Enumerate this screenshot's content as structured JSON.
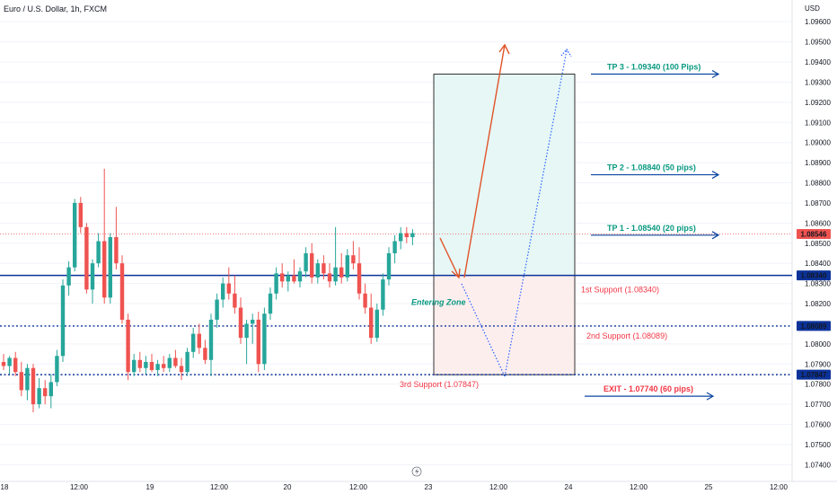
{
  "header": {
    "title": "Euro / U.S. Dollar, 1h, FXCM"
  },
  "currency_label": "USD",
  "colors": {
    "up": "#26a69a",
    "down": "#ef5350",
    "line_blue": "#0c3299",
    "tp_text": "#089981",
    "support_text": "#f23645",
    "arrow_blue": "#0d47a1",
    "orange": "#e1542a",
    "dotted_blue": "#2962ff",
    "tp_box": "#e6f7f5",
    "sl_box": "#fdeeee"
  },
  "chart_data": {
    "type": "candlestick",
    "symbol": "EURUSD",
    "timeframe": "1h",
    "ylim": [
      1.0738,
      1.0968
    ],
    "y_ticks": [
      "1.07400",
      "1.07500",
      "1.07600",
      "1.07700",
      "1.07800",
      "1.07900",
      "1.08000",
      "1.08200",
      "1.08300",
      "1.08400",
      "1.08500",
      "1.08600",
      "1.08700",
      "1.08800",
      "1.08900",
      "1.09000",
      "1.09100",
      "1.09200",
      "1.09300",
      "1.09400",
      "1.09500",
      "1.09600"
    ],
    "x_labels": [
      "18",
      "12:00",
      "19",
      "12:00",
      "20",
      "12:00",
      "23",
      "12:00",
      "24",
      "12:00",
      "25",
      "12:00"
    ],
    "candles": [
      [
        1.0791,
        1.0795,
        1.0787,
        1.0789
      ],
      [
        1.0789,
        1.0794,
        1.0785,
        1.0793
      ],
      [
        1.0793,
        1.0796,
        1.0784,
        1.0786
      ],
      [
        1.0786,
        1.0791,
        1.0774,
        1.0777
      ],
      [
        1.0777,
        1.079,
        1.0772,
        1.0788
      ],
      [
        1.0788,
        1.079,
        1.0766,
        1.077
      ],
      [
        1.077,
        1.0783,
        1.0768,
        1.0778
      ],
      [
        1.0778,
        1.0782,
        1.077,
        1.0774
      ],
      [
        1.0774,
        1.0785,
        1.0768,
        1.0781
      ],
      [
        1.0781,
        1.0797,
        1.0779,
        1.0794
      ],
      [
        1.0794,
        1.0832,
        1.0791,
        1.0829
      ],
      [
        1.0829,
        1.0841,
        1.0824,
        1.0838
      ],
      [
        1.0838,
        1.0872,
        1.0836,
        1.087
      ],
      [
        1.087,
        1.0873,
        1.0855,
        1.0858
      ],
      [
        1.0858,
        1.086,
        1.0825,
        1.0827
      ],
      [
        1.0827,
        1.0842,
        1.082,
        1.084
      ],
      [
        1.084,
        1.0855,
        1.0838,
        1.0851
      ],
      [
        1.0851,
        1.0887,
        1.082,
        1.0823
      ],
      [
        1.0823,
        1.0855,
        1.082,
        1.0853
      ],
      [
        1.0853,
        1.0868,
        1.0837,
        1.084
      ],
      [
        1.084,
        1.0844,
        1.081,
        1.0812
      ],
      [
        1.0812,
        1.0815,
        1.0782,
        1.0786
      ],
      [
        1.0786,
        1.0795,
        1.0784,
        1.0792
      ],
      [
        1.0792,
        1.0796,
        1.0786,
        1.0788
      ],
      [
        1.0788,
        1.0794,
        1.0785,
        1.0791
      ],
      [
        1.0791,
        1.0795,
        1.0786,
        1.0787
      ],
      [
        1.0787,
        1.0792,
        1.0784,
        1.079
      ],
      [
        1.079,
        1.0794,
        1.0786,
        1.0788
      ],
      [
        1.0788,
        1.0795,
        1.0786,
        1.0793
      ],
      [
        1.0793,
        1.0797,
        1.0788,
        1.0789
      ],
      [
        1.0789,
        1.0793,
        1.0782,
        1.0786
      ],
      [
        1.0786,
        1.0798,
        1.0784,
        1.0796
      ],
      [
        1.0796,
        1.0808,
        1.0793,
        1.0805
      ],
      [
        1.0805,
        1.081,
        1.0795,
        1.0798
      ],
      [
        1.0798,
        1.0802,
        1.079,
        1.0792
      ],
      [
        1.0792,
        1.0815,
        1.0784,
        1.0812
      ],
      [
        1.0812,
        1.0825,
        1.0808,
        1.0822
      ],
      [
        1.0822,
        1.0833,
        1.0818,
        1.083
      ],
      [
        1.083,
        1.0838,
        1.0822,
        1.0825
      ],
      [
        1.0825,
        1.0834,
        1.0815,
        1.0818
      ],
      [
        1.0818,
        1.0823,
        1.08,
        1.0803
      ],
      [
        1.0803,
        1.0812,
        1.079,
        1.081
      ],
      [
        1.081,
        1.0815,
        1.08,
        1.0812
      ],
      [
        1.0812,
        1.0816,
        1.0786,
        1.079
      ],
      [
        1.079,
        1.0818,
        1.0787,
        1.0815
      ],
      [
        1.0815,
        1.0828,
        1.0812,
        1.0825
      ],
      [
        1.0825,
        1.0838,
        1.0822,
        1.0835
      ],
      [
        1.0835,
        1.084,
        1.0828,
        1.0831
      ],
      [
        1.0831,
        1.0836,
        1.0826,
        1.0834
      ],
      [
        1.0834,
        1.0842,
        1.083,
        1.0831
      ],
      [
        1.0831,
        1.0838,
        1.0828,
        1.0836
      ],
      [
        1.0836,
        1.0848,
        1.0833,
        1.0845
      ],
      [
        1.0845,
        1.085,
        1.083,
        1.0833
      ],
      [
        1.0833,
        1.0842,
        1.083,
        1.084
      ],
      [
        1.084,
        1.0844,
        1.0832,
        1.0835
      ],
      [
        1.0835,
        1.084,
        1.0828,
        1.0831
      ],
      [
        1.0831,
        1.0858,
        1.0829,
        1.0838
      ],
      [
        1.0838,
        1.0845,
        1.083,
        1.0833
      ],
      [
        1.0833,
        1.0847,
        1.0831,
        1.0844
      ],
      [
        1.0844,
        1.0851,
        1.0837,
        1.084
      ],
      [
        1.084,
        1.0848,
        1.0822,
        1.0825
      ],
      [
        1.0825,
        1.083,
        1.0815,
        1.0818
      ],
      [
        1.0818,
        1.0825,
        1.08,
        1.0803
      ],
      [
        1.0803,
        1.082,
        1.0801,
        1.0817
      ],
      [
        1.0817,
        1.0835,
        1.0814,
        1.0832
      ],
      [
        1.0832,
        1.0848,
        1.0829,
        1.0845
      ],
      [
        1.0845,
        1.0854,
        1.084,
        1.0851
      ],
      [
        1.0851,
        1.0858,
        1.0847,
        1.0855
      ],
      [
        1.0855,
        1.0858,
        1.085,
        1.0853
      ],
      [
        1.0853,
        1.0857,
        1.0849,
        1.0855
      ]
    ],
    "horizontal_lines": [
      {
        "value": 1.0834,
        "style": "solid",
        "badge": "1.08340"
      },
      {
        "value": 1.08089,
        "style": "dotted",
        "badge": "1.08089"
      },
      {
        "value": 1.07847,
        "style": "dotted",
        "badge": "1.07847"
      }
    ],
    "last_price": {
      "value": 1.08546,
      "badge": "1.08546"
    },
    "targets": [
      {
        "label": "TP 3 - 1.09340 (100 Pips)",
        "value": 1.0934
      },
      {
        "label": "TP 2 - 1.08840 (50 pips)",
        "value": 1.0884
      },
      {
        "label": "TP 1 - 1.08540 (20 pips)",
        "value": 1.0854
      },
      {
        "label": "EXIT - 1.07740 (60 pips)",
        "value": 1.0774
      }
    ],
    "supports": [
      {
        "label": "1st Support (1.08340)",
        "value": 1.0834
      },
      {
        "label": "2nd Support (1.08089)",
        "value": 1.08089
      },
      {
        "label": "3rd Support (1.07847)",
        "value": 1.07847
      }
    ],
    "zone_label": "Entering Zone",
    "position_box": {
      "top": 1.0934,
      "entry": 1.0834,
      "bottom": 1.07847
    }
  }
}
